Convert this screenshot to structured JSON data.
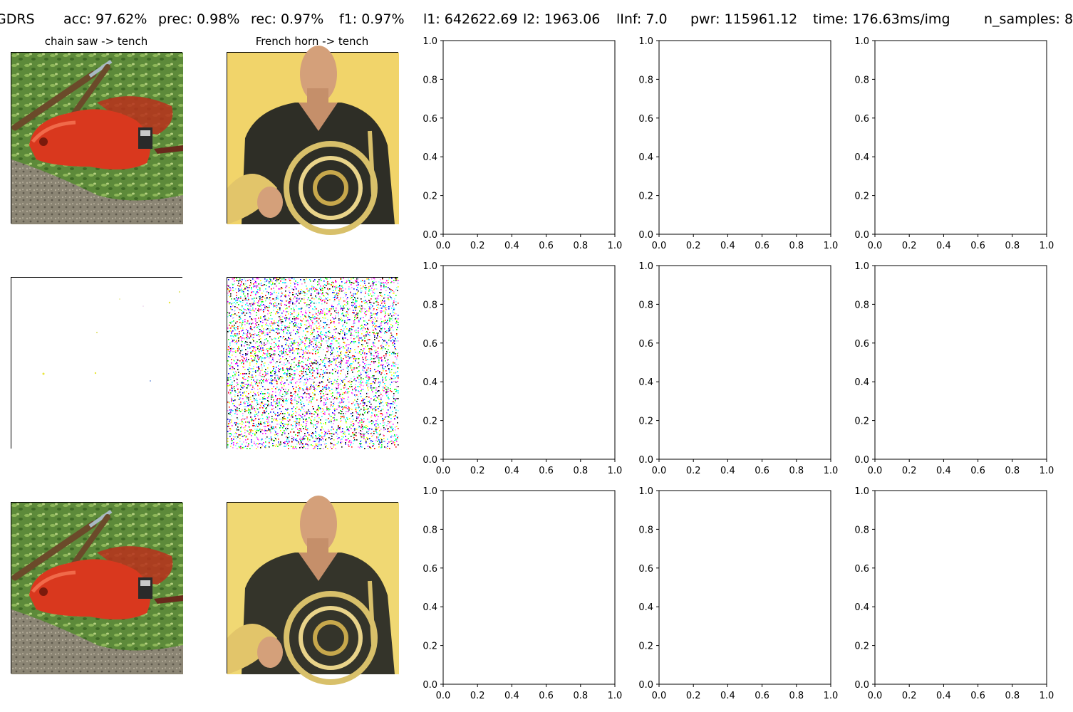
{
  "header": {
    "method": "GDRS",
    "acc": "acc: 97.62%",
    "prec": "prec: 0.98%",
    "rec": "rec: 0.97%",
    "f1": "f1: 0.97%",
    "l1": "l1: 642622.69",
    "l2": "l2: 1963.06",
    "linf": "lInf: 7.0",
    "pwr": "pwr: 115961.12",
    "time": "time: 176.63ms/img",
    "n_samples": "n_samples: 8"
  },
  "images": {
    "col1_title": "chain saw -> tench",
    "col2_title": "French horn -> tench",
    "row1": [
      "original-chain-saw-photo",
      "original-french-horn-photo"
    ],
    "row2": [
      "perturbation-map-sparse",
      "perturbation-map-noise"
    ],
    "row3": [
      "adversarial-chain-saw-photo",
      "adversarial-french-horn-photo"
    ]
  },
  "chart_data": {
    "type": "scatter",
    "grid": false,
    "panel_count": 9,
    "panels": [
      {
        "xlim": [
          0,
          1
        ],
        "ylim": [
          0,
          1
        ],
        "xticks": [
          "0.0",
          "0.2",
          "0.4",
          "0.6",
          "0.8",
          "1.0"
        ],
        "yticks": [
          "0.0",
          "0.2",
          "0.4",
          "0.6",
          "0.8",
          "1.0"
        ],
        "points": []
      },
      {
        "xlim": [
          0,
          1
        ],
        "ylim": [
          0,
          1
        ],
        "xticks": [
          "0.0",
          "0.2",
          "0.4",
          "0.6",
          "0.8",
          "1.0"
        ],
        "yticks": [
          "0.0",
          "0.2",
          "0.4",
          "0.6",
          "0.8",
          "1.0"
        ],
        "points": []
      },
      {
        "xlim": [
          0,
          1
        ],
        "ylim": [
          0,
          1
        ],
        "xticks": [
          "0.0",
          "0.2",
          "0.4",
          "0.6",
          "0.8",
          "1.0"
        ],
        "yticks": [
          "0.0",
          "0.2",
          "0.4",
          "0.6",
          "0.8",
          "1.0"
        ],
        "points": []
      },
      {
        "xlim": [
          0,
          1
        ],
        "ylim": [
          0,
          1
        ],
        "xticks": [
          "0.0",
          "0.2",
          "0.4",
          "0.6",
          "0.8",
          "1.0"
        ],
        "yticks": [
          "0.0",
          "0.2",
          "0.4",
          "0.6",
          "0.8",
          "1.0"
        ],
        "points": []
      },
      {
        "xlim": [
          0,
          1
        ],
        "ylim": [
          0,
          1
        ],
        "xticks": [
          "0.0",
          "0.2",
          "0.4",
          "0.6",
          "0.8",
          "1.0"
        ],
        "yticks": [
          "0.0",
          "0.2",
          "0.4",
          "0.6",
          "0.8",
          "1.0"
        ],
        "points": []
      },
      {
        "xlim": [
          0,
          1
        ],
        "ylim": [
          0,
          1
        ],
        "xticks": [
          "0.0",
          "0.2",
          "0.4",
          "0.6",
          "0.8",
          "1.0"
        ],
        "yticks": [
          "0.0",
          "0.2",
          "0.4",
          "0.6",
          "0.8",
          "1.0"
        ],
        "points": []
      },
      {
        "xlim": [
          0,
          1
        ],
        "ylim": [
          0,
          1
        ],
        "xticks": [
          "0.0",
          "0.2",
          "0.4",
          "0.6",
          "0.8",
          "1.0"
        ],
        "yticks": [
          "0.0",
          "0.2",
          "0.4",
          "0.6",
          "0.8",
          "1.0"
        ],
        "points": []
      },
      {
        "xlim": [
          0,
          1
        ],
        "ylim": [
          0,
          1
        ],
        "xticks": [
          "0.0",
          "0.2",
          "0.4",
          "0.6",
          "0.8",
          "1.0"
        ],
        "yticks": [
          "0.0",
          "0.2",
          "0.4",
          "0.6",
          "0.8",
          "1.0"
        ],
        "points": []
      },
      {
        "xlim": [
          0,
          1
        ],
        "ylim": [
          0,
          1
        ],
        "xticks": [
          "0.0",
          "0.2",
          "0.4",
          "0.6",
          "0.8",
          "1.0"
        ],
        "yticks": [
          "0.0",
          "0.2",
          "0.4",
          "0.6",
          "0.8",
          "1.0"
        ],
        "points": []
      }
    ]
  }
}
